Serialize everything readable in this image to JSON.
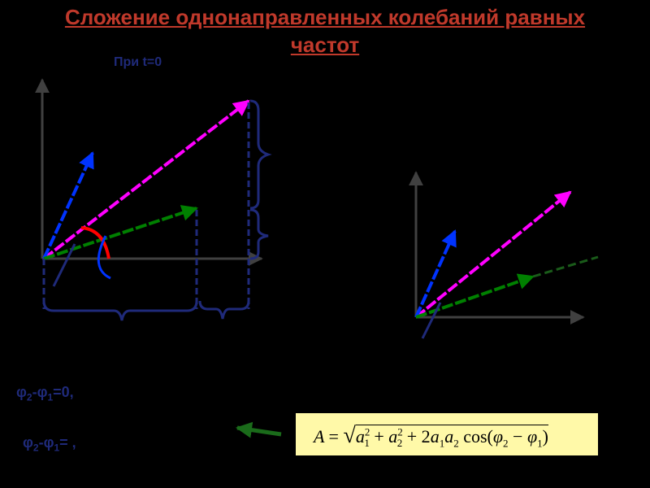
{
  "title": {
    "line1": "Сложение однонаправленных колебаний равных",
    "line2": "частот"
  },
  "time_label": "При t=0",
  "conditions": [
    {
      "phi_a": "φ",
      "sub_a": "2",
      "sep": "-φ",
      "sub_b": "1",
      "rest": "=0,"
    },
    {
      "phi_a": "φ",
      "sub_a": "2",
      "sep": "-φ",
      "sub_b": "1",
      "rest": "=   ,"
    }
  ],
  "formula": {
    "lhs": "A",
    "eq": "=",
    "sqrt": "√",
    "a1": "a",
    "sub1": "1",
    "sup1": "2",
    "plus1": "+",
    "a2": "a",
    "sub2": "2",
    "sup2": "2",
    "plus2": "+ 2",
    "prod_a1": "a",
    "prod_sub1": "1",
    "prod_a2": "a",
    "prod_sub2": "2",
    "cos": "cos(",
    "phi2": "φ",
    "phi2_sub": "2",
    "minus": "−",
    "phi1": "φ",
    "phi1_sub": "1",
    "close": ")"
  },
  "colors": {
    "background": "#000000",
    "title": "#c0392b",
    "axes": "#404040",
    "resultant": "#ff00ff",
    "vector_a1": "#0033ff",
    "vector_a2": "#008000",
    "angle_red": "#ff0000",
    "brace_dark": "#1f2a7a",
    "formula_bg": "#fff9a8",
    "arrow": "#1a6b1a"
  }
}
